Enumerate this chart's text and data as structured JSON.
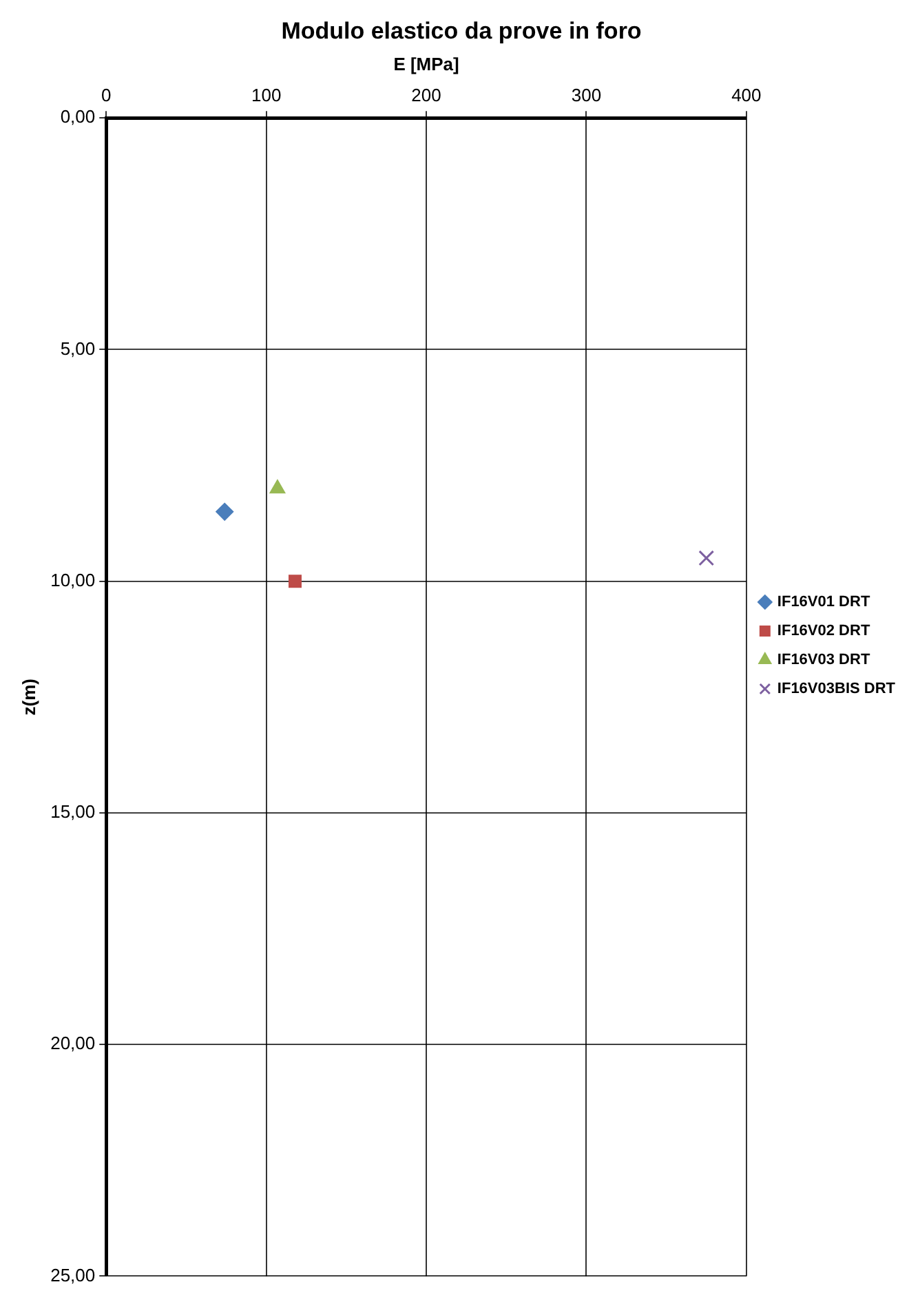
{
  "chart_data": {
    "type": "scatter",
    "title": "Modulo elastico da prove in foro",
    "xlabel": "E [MPa]",
    "ylabel": "z(m)",
    "xlim": [
      0,
      400
    ],
    "xticks": [
      0,
      100,
      200,
      300,
      400
    ],
    "ylim": [
      25,
      0
    ],
    "yticks": [
      {
        "value": 0,
        "label": "0,00"
      },
      {
        "value": 5,
        "label": "5,00"
      },
      {
        "value": 10,
        "label": "10,00"
      },
      {
        "value": 15,
        "label": "15,00"
      },
      {
        "value": 20,
        "label": "20,00"
      },
      {
        "value": 25,
        "label": "25,00"
      }
    ],
    "grid": true,
    "legend": "right",
    "series": [
      {
        "name": "IF16V01 DRT",
        "color": "#4a7ebb",
        "marker": "diamond",
        "x": [
          74
        ],
        "values": [
          8.5
        ]
      },
      {
        "name": "IF16V02 DRT",
        "color": "#be4b48",
        "marker": "square",
        "x": [
          118
        ],
        "values": [
          10
        ]
      },
      {
        "name": "IF16V03 DRT",
        "color": "#98b954",
        "marker": "triangle",
        "x": [
          107
        ],
        "values": [
          8
        ]
      },
      {
        "name": "IF16V03BIS DRT",
        "color": "#7d60a0",
        "marker": "cross",
        "x": [
          375
        ],
        "values": [
          9.5
        ]
      }
    ]
  }
}
